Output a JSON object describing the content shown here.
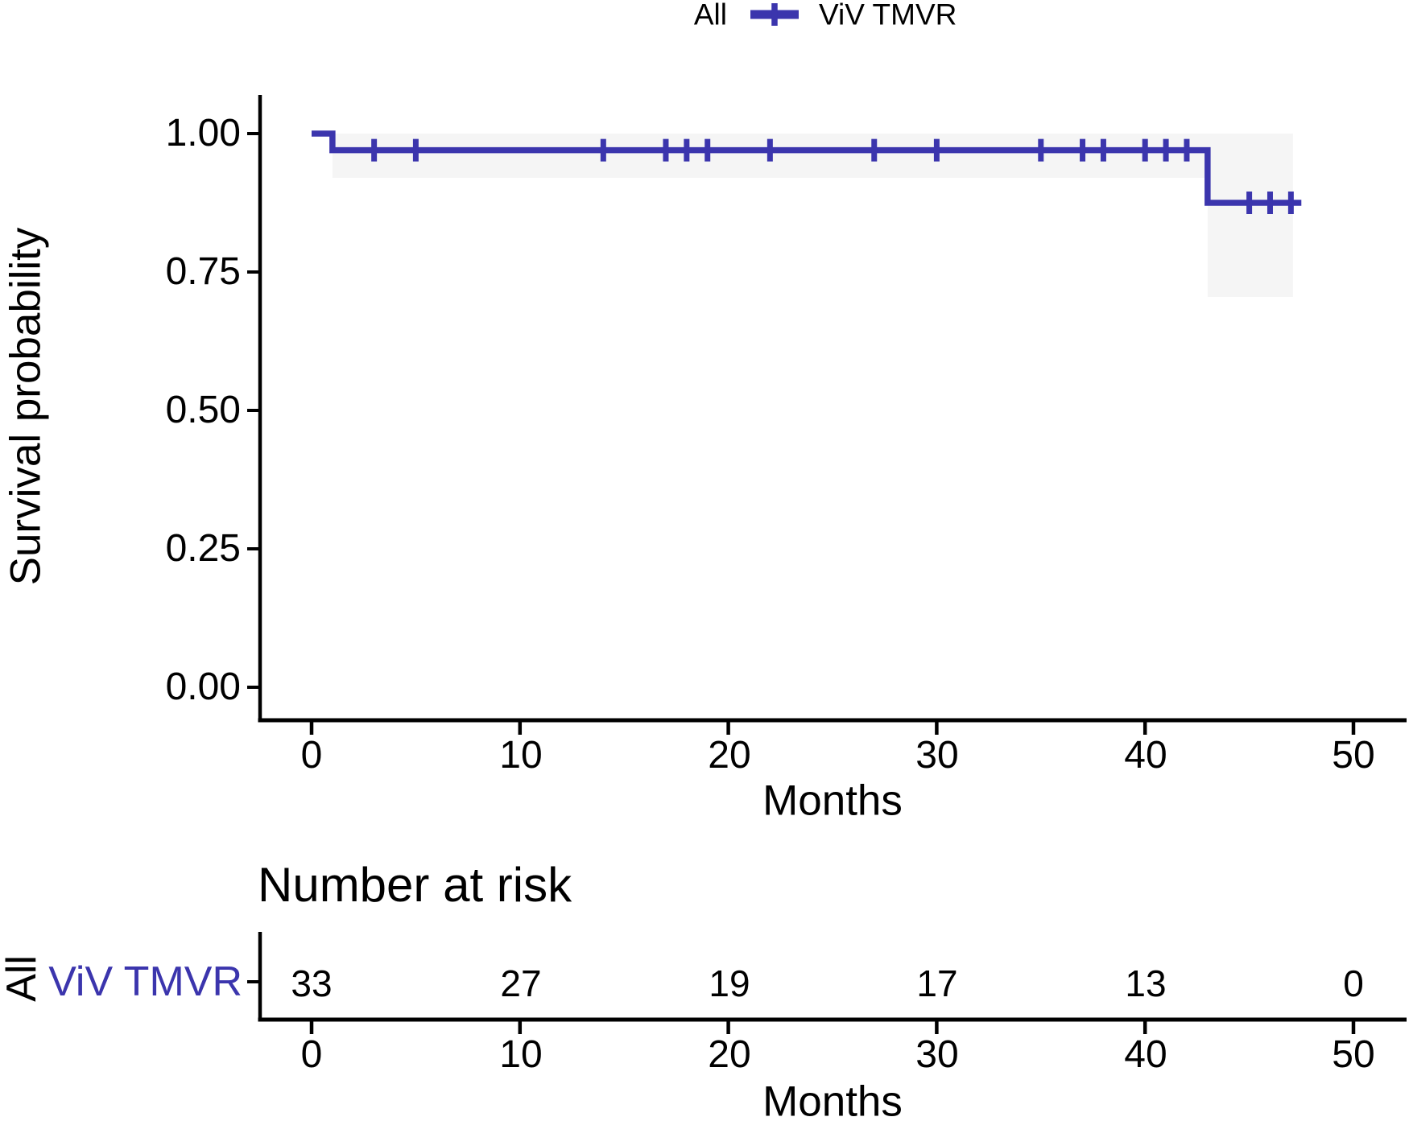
{
  "chart_data": {
    "type": "line",
    "subtype": "kaplan-meier-step-curve",
    "legend": {
      "group_label": "All",
      "series_label": "ViV TMVR"
    },
    "xlabel": "Months",
    "ylabel": "Survival probability",
    "xlim": [
      0,
      52.5
    ],
    "ylim": [
      0,
      1
    ],
    "x_ticks": [
      0,
      10,
      20,
      30,
      40,
      50
    ],
    "y_ticks": [
      "0.00",
      "0.25",
      "0.50",
      "0.75",
      "1.00"
    ],
    "grid": false,
    "legend_position": "top",
    "survival_steps": {
      "times": [
        0,
        1,
        43
      ],
      "probs": [
        1.0,
        0.97,
        0.875
      ],
      "end_time": 47.5
    },
    "censor_marks": [
      {
        "t": 3,
        "s": 0.97
      },
      {
        "t": 5,
        "s": 0.97
      },
      {
        "t": 14,
        "s": 0.97
      },
      {
        "t": 17,
        "s": 0.97
      },
      {
        "t": 18,
        "s": 0.97
      },
      {
        "t": 19,
        "s": 0.97
      },
      {
        "t": 22,
        "s": 0.97
      },
      {
        "t": 27,
        "s": 0.97
      },
      {
        "t": 30,
        "s": 0.97
      },
      {
        "t": 35,
        "s": 0.97
      },
      {
        "t": 37,
        "s": 0.97
      },
      {
        "t": 38,
        "s": 0.97
      },
      {
        "t": 40,
        "s": 0.97
      },
      {
        "t": 41,
        "s": 0.97
      },
      {
        "t": 42,
        "s": 0.97
      },
      {
        "t": 45,
        "s": 0.875
      },
      {
        "t": 46,
        "s": 0.875
      },
      {
        "t": 47,
        "s": 0.875
      }
    ],
    "confidence_bands": [
      {
        "t0": 1,
        "t1": 47.1,
        "lower": 0.92,
        "upper": 1.0
      },
      {
        "t0": 43,
        "t1": 47.1,
        "lower": 0.705,
        "upper": 0.92
      }
    ],
    "risk_table": {
      "title": "Number at risk",
      "group_axis_label": "All",
      "row_label": "ViV TMVR",
      "times": [
        0,
        10,
        20,
        30,
        40,
        50
      ],
      "counts": [
        33,
        27,
        19,
        17,
        13,
        0
      ],
      "xlabel": "Months"
    },
    "colors": {
      "line": "#3b35ad",
      "ci_fill": "#f5f5f5",
      "axis": "#000000",
      "text": "#000000"
    }
  }
}
